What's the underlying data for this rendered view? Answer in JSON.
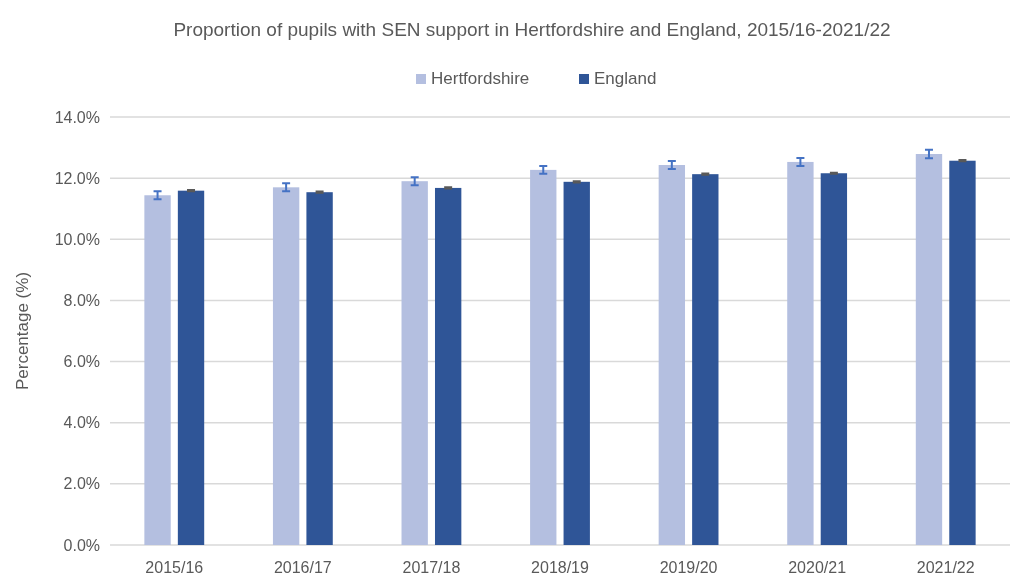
{
  "chart_data": {
    "type": "bar",
    "title": "Proportion of pupils with SEN support in Hertfordshire and England, 2015/16-2021/22",
    "ylabel": "Percentage (%)",
    "categories": [
      "2015/16",
      "2016/17",
      "2017/18",
      "2018/19",
      "2019/20",
      "2020/21",
      "2021/22"
    ],
    "series": [
      {
        "name": "Hertfordshire",
        "color": "#b4bfe0",
        "values": [
          11.44,
          11.7,
          11.9,
          12.27,
          12.43,
          12.53,
          12.79
        ],
        "errors": [
          0.13,
          0.13,
          0.13,
          0.13,
          0.13,
          0.13,
          0.14
        ]
      },
      {
        "name": "England",
        "color": "#2f5597",
        "values": [
          11.59,
          11.54,
          11.68,
          11.88,
          12.13,
          12.16,
          12.57
        ],
        "errors": [
          0.02,
          0.02,
          0.02,
          0.02,
          0.02,
          0.02,
          0.02
        ]
      }
    ],
    "ylim": [
      0,
      14
    ],
    "yticks": [
      {
        "value": 0,
        "label": "0.0%"
      },
      {
        "value": 2,
        "label": "2.0%"
      },
      {
        "value": 4,
        "label": "4.0%"
      },
      {
        "value": 6,
        "label": "6.0%"
      },
      {
        "value": 8,
        "label": "8.0%"
      },
      {
        "value": 10,
        "label": "10.0%"
      },
      {
        "value": 12,
        "label": "12.0%"
      },
      {
        "value": 14,
        "label": "14.0%"
      }
    ],
    "grid": "y",
    "legend": "top"
  }
}
